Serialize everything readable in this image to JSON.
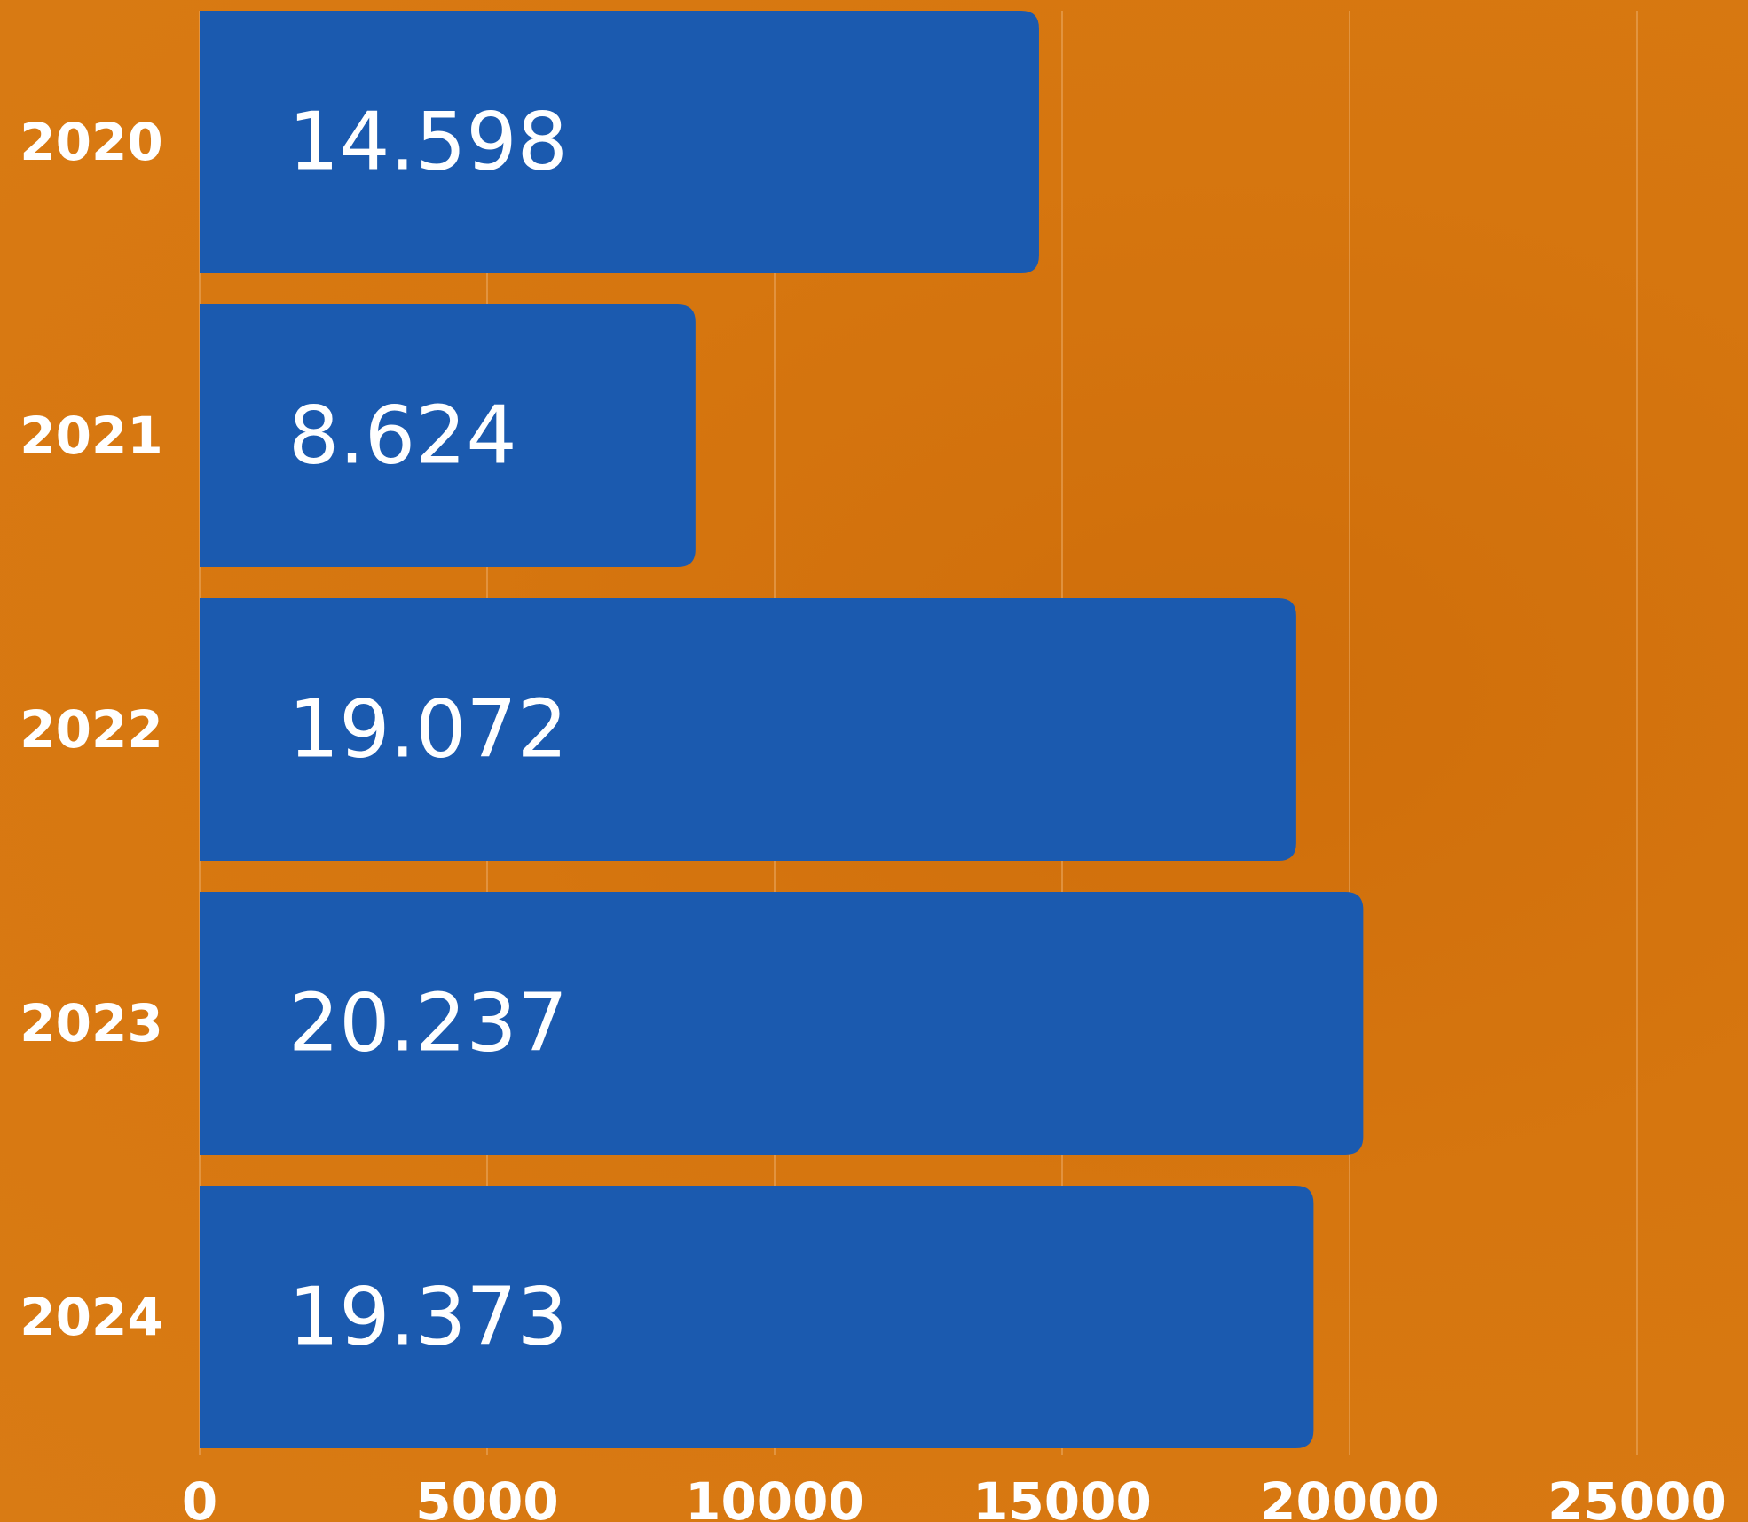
{
  "chart_data": {
    "type": "bar",
    "orientation": "horizontal",
    "categories": [
      "2020",
      "2021",
      "2022",
      "2023",
      "2024"
    ],
    "values": [
      14598,
      8624,
      19072,
      20237,
      19373
    ],
    "data_labels": [
      "14.598",
      "8.624",
      "19.072",
      "20.237",
      "19.373"
    ],
    "x_ticks": [
      "0",
      "5000",
      "10000",
      "15000",
      "20000",
      "25000"
    ],
    "xlim": [
      0,
      25000
    ],
    "grid": true,
    "colors": {
      "bar": "#1b5aaf",
      "text": "#ffffff",
      "grid": "#e9a35a"
    }
  }
}
